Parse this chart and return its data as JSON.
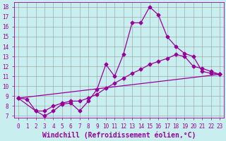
{
  "xlabel": "Windchill (Refroidissement éolien,°C)",
  "background_color": "#c8eef0",
  "line_color": "#990099",
  "marker": "D",
  "markersize": 2.5,
  "linewidth": 0.9,
  "xlim": [
    -0.5,
    23.5
  ],
  "ylim": [
    6.8,
    18.5
  ],
  "xticks": [
    0,
    1,
    2,
    3,
    4,
    5,
    6,
    7,
    8,
    9,
    10,
    11,
    12,
    13,
    14,
    15,
    16,
    17,
    18,
    19,
    20,
    21,
    22,
    23
  ],
  "yticks": [
    7,
    8,
    9,
    10,
    11,
    12,
    13,
    14,
    15,
    16,
    17,
    18
  ],
  "grid_color": "#999999",
  "line1_x": [
    0,
    1,
    2,
    3,
    4,
    5,
    6,
    7,
    8,
    9,
    10,
    11,
    12,
    13,
    14,
    15,
    16,
    17,
    18,
    19,
    20,
    21,
    22,
    23
  ],
  "line1_y": [
    8.8,
    8.7,
    7.5,
    7.0,
    7.5,
    8.2,
    8.3,
    7.5,
    8.5,
    9.7,
    12.2,
    11.0,
    13.2,
    16.4,
    16.4,
    18.0,
    17.2,
    15.0,
    14.0,
    13.3,
    13.0,
    11.5,
    11.3,
    11.2
  ],
  "line2_x": [
    0,
    2,
    3,
    4,
    5,
    6,
    7,
    8,
    9,
    10,
    11,
    12,
    13,
    14,
    15,
    16,
    17,
    18,
    19,
    20,
    21,
    22,
    23
  ],
  "line2_y": [
    8.8,
    7.5,
    7.5,
    8.0,
    8.3,
    8.5,
    8.5,
    8.8,
    9.2,
    9.8,
    10.3,
    10.8,
    11.3,
    11.7,
    12.2,
    12.5,
    12.8,
    13.2,
    13.0,
    12.0,
    11.8,
    11.5,
    11.2
  ],
  "line3_x": [
    0,
    23
  ],
  "line3_y": [
    8.8,
    11.2
  ],
  "font_color": "#990099",
  "tick_fontsize": 5.5,
  "label_fontsize": 7.0
}
